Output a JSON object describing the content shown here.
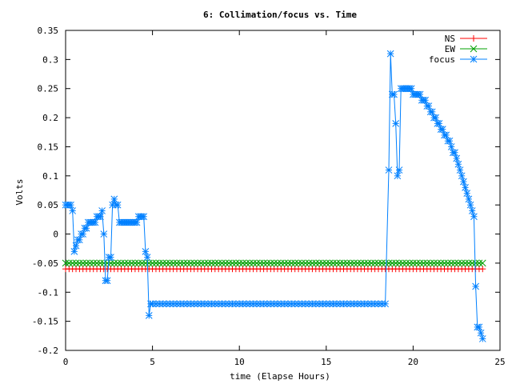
{
  "chart_data": {
    "type": "line",
    "title": "6: Collimation/focus vs. Time",
    "xlabel": "time (Elapse Hours)",
    "ylabel": "Volts",
    "xlim": [
      0,
      25
    ],
    "ylim": [
      -0.2,
      0.35
    ],
    "xticks": [
      0,
      5,
      10,
      15,
      20,
      25
    ],
    "xtick_labels": [
      "0",
      "5",
      "10",
      "15",
      "20",
      "25"
    ],
    "yticks": [
      -0.2,
      -0.15,
      -0.1,
      -0.05,
      0,
      0.05,
      0.1,
      0.15,
      0.2,
      0.25,
      0.3,
      0.35
    ],
    "ytick_labels": [
      "-0.2",
      "-0.15",
      "-0.1",
      "-0.05",
      "0",
      "0.05",
      "0.1",
      "0.15",
      "0.2",
      "0.25",
      "0.3",
      "0.35"
    ],
    "grid": false,
    "legend": "top-right",
    "series": [
      {
        "name": "NS",
        "color": "#ff0000",
        "marker": "plus",
        "points": [
          [
            0,
            -0.06
          ],
          [
            24,
            -0.06
          ]
        ],
        "note_sampling": "constant",
        "x_start": 0,
        "x_end": 24,
        "x_step": 0.2,
        "value": -0.06
      },
      {
        "name": "EW",
        "color": "#00a000",
        "marker": "cross",
        "x_start": 0,
        "x_end": 24,
        "x_step": 0.2,
        "value": -0.05
      },
      {
        "name": "focus",
        "color": "#0080ff",
        "marker": "star",
        "points": [
          [
            0,
            0.05
          ],
          [
            0.1,
            0.05
          ],
          [
            0.2,
            0.05
          ],
          [
            0.3,
            0.05
          ],
          [
            0.4,
            0.04
          ],
          [
            0.5,
            -0.03
          ],
          [
            0.6,
            -0.02
          ],
          [
            0.7,
            -0.01
          ],
          [
            0.8,
            -0.01
          ],
          [
            0.9,
            0.0
          ],
          [
            1.0,
            0.0
          ],
          [
            1.1,
            0.01
          ],
          [
            1.2,
            0.01
          ],
          [
            1.3,
            0.02
          ],
          [
            1.4,
            0.02
          ],
          [
            1.5,
            0.02
          ],
          [
            1.6,
            0.02
          ],
          [
            1.7,
            0.02
          ],
          [
            1.8,
            0.03
          ],
          [
            1.9,
            0.03
          ],
          [
            2.0,
            0.03
          ],
          [
            2.1,
            0.04
          ],
          [
            2.2,
            0.0
          ],
          [
            2.3,
            -0.08
          ],
          [
            2.4,
            -0.08
          ],
          [
            2.5,
            -0.04
          ],
          [
            2.6,
            -0.04
          ],
          [
            2.7,
            0.05
          ],
          [
            2.8,
            0.06
          ],
          [
            2.9,
            0.05
          ],
          [
            3.0,
            0.05
          ],
          [
            3.1,
            0.02
          ],
          [
            3.2,
            0.02
          ],
          [
            3.3,
            0.02
          ],
          [
            3.4,
            0.02
          ],
          [
            3.5,
            0.02
          ],
          [
            3.6,
            0.02
          ],
          [
            3.7,
            0.02
          ],
          [
            3.8,
            0.02
          ],
          [
            3.9,
            0.02
          ],
          [
            4.0,
            0.02
          ],
          [
            4.1,
            0.02
          ],
          [
            4.2,
            0.03
          ],
          [
            4.3,
            0.03
          ],
          [
            4.4,
            0.03
          ],
          [
            4.5,
            0.03
          ],
          [
            4.6,
            -0.03
          ],
          [
            4.7,
            -0.04
          ],
          [
            4.8,
            -0.14
          ],
          [
            4.9,
            -0.12
          ],
          [
            5.0,
            -0.12
          ],
          [
            18.5,
            -0.12
          ],
          [
            18.6,
            0.11
          ],
          [
            18.7,
            0.31
          ],
          [
            18.8,
            0.24
          ],
          [
            18.9,
            0.24
          ],
          [
            19.0,
            0.19
          ],
          [
            19.1,
            0.1
          ],
          [
            19.2,
            0.11
          ],
          [
            19.3,
            0.25
          ],
          [
            19.4,
            0.25
          ],
          [
            19.5,
            0.25
          ],
          [
            19.6,
            0.25
          ],
          [
            19.7,
            0.25
          ],
          [
            19.8,
            0.25
          ],
          [
            19.9,
            0.25
          ],
          [
            20.0,
            0.24
          ],
          [
            20.1,
            0.24
          ],
          [
            20.2,
            0.24
          ],
          [
            20.3,
            0.24
          ],
          [
            20.4,
            0.24
          ],
          [
            20.5,
            0.23
          ],
          [
            20.6,
            0.23
          ],
          [
            20.7,
            0.23
          ],
          [
            20.8,
            0.22
          ],
          [
            20.9,
            0.22
          ],
          [
            21.0,
            0.21
          ],
          [
            21.1,
            0.21
          ],
          [
            21.2,
            0.2
          ],
          [
            21.3,
            0.2
          ],
          [
            21.4,
            0.19
          ],
          [
            21.5,
            0.19
          ],
          [
            21.6,
            0.18
          ],
          [
            21.7,
            0.18
          ],
          [
            21.8,
            0.17
          ],
          [
            21.9,
            0.17
          ],
          [
            22.0,
            0.16
          ],
          [
            22.1,
            0.16
          ],
          [
            22.2,
            0.15
          ],
          [
            22.3,
            0.14
          ],
          [
            22.4,
            0.14
          ],
          [
            22.5,
            0.13
          ],
          [
            22.6,
            0.12
          ],
          [
            22.7,
            0.11
          ],
          [
            22.8,
            0.1
          ],
          [
            22.9,
            0.09
          ],
          [
            23.0,
            0.08
          ],
          [
            23.1,
            0.07
          ],
          [
            23.2,
            0.06
          ],
          [
            23.3,
            0.05
          ],
          [
            23.4,
            0.04
          ],
          [
            23.5,
            0.03
          ],
          [
            23.6,
            -0.09
          ],
          [
            23.7,
            -0.16
          ],
          [
            23.8,
            -0.16
          ],
          [
            23.9,
            -0.17
          ],
          [
            24.0,
            -0.18
          ]
        ],
        "flat_segment": {
          "x_start": 5.0,
          "x_end": 18.5,
          "x_step": 0.2,
          "value": -0.12
        }
      }
    ]
  }
}
